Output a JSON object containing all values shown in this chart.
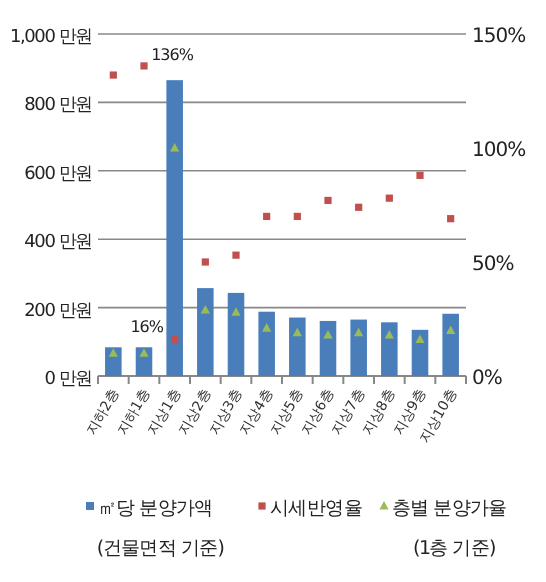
{
  "chart_data": {
    "type": "bar",
    "categories": [
      "지하2층",
      "지하1층",
      "지상1층",
      "지상2층",
      "지상3층",
      "지상4층",
      "지상5층",
      "지상6층",
      "지상7층",
      "지상8층",
      "지상9층",
      "지상10층"
    ],
    "series": [
      {
        "name": "㎡당 분양가액\n(건물면적 기준)",
        "color": "#4a7ebb",
        "values": [
          84,
          84,
          865,
          257,
          243,
          188,
          171,
          161,
          165,
          157,
          135,
          182
        ]
      },
      {
        "name": "시세반영율",
        "type": "scatter",
        "axis": "y2",
        "marker": "square",
        "color": "#c0504d",
        "values": [
          132,
          136,
          16,
          50,
          53,
          70,
          70,
          77,
          74,
          78,
          88,
          69
        ],
        "value_labels": [
          null,
          "136%",
          "16%",
          null,
          null,
          null,
          null,
          null,
          null,
          null,
          null,
          null
        ]
      },
      {
        "name": "층별 분양가율\n(1층 기준)",
        "type": "scatter",
        "axis": "y2",
        "marker": "triangle",
        "color": "#9bbb59",
        "values": [
          10,
          10,
          100,
          29,
          28,
          21,
          19,
          18,
          19,
          18,
          16,
          20
        ]
      }
    ],
    "ylim": [
      0,
      1000
    ],
    "yticks": [
      {
        "value": 0,
        "label": "0 만원"
      },
      {
        "value": 200,
        "label": "200 만원"
      },
      {
        "value": 400,
        "label": "400 만원"
      },
      {
        "value": 600,
        "label": "600 만원"
      },
      {
        "value": 800,
        "label": "800 만원"
      },
      {
        "value": 1000,
        "label": "1,000 만원"
      }
    ],
    "y2lim": [
      0,
      150
    ],
    "y2ticks": [
      {
        "value": 0,
        "label": "0%"
      },
      {
        "value": 50,
        "label": "50%"
      },
      {
        "value": 100,
        "label": "100%"
      },
      {
        "value": 150,
        "label": "150%"
      }
    ],
    "grid": "y",
    "legend": "bottom"
  }
}
